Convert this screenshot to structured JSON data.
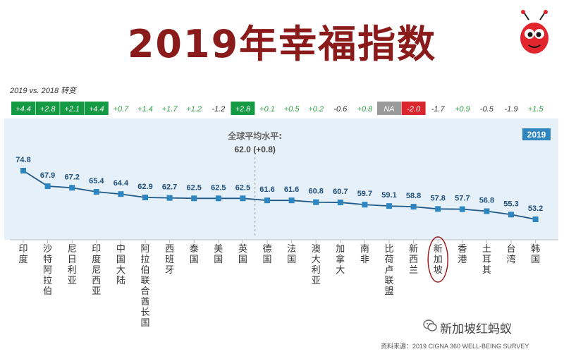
{
  "chart_data": {
    "type": "line",
    "title": "2019年幸福指数",
    "comparison_label": "2019 vs. 2018 转变",
    "year_badge": "2019",
    "average_label": "全球平均水平:",
    "average_value": "62.0 (+0.8)",
    "average_y": 62.0,
    "ylim": [
      50,
      78
    ],
    "grid": false,
    "categories": [
      "印度",
      "沙特阿拉伯",
      "尼日利亚",
      "印度尼西亚",
      "中国大陆",
      "阿拉伯联合酋长国",
      "西班牙",
      "泰国",
      "美国",
      "英国",
      "德国",
      "法国",
      "澳大利亚",
      "加拿大",
      "南非",
      "比荷卢联盟",
      "新西兰",
      "新加坡",
      "香港",
      "土耳其",
      "台湾",
      "韩国"
    ],
    "highlighted_category": "新加坡",
    "values": [
      74.8,
      67.9,
      67.2,
      65.4,
      64.4,
      62.9,
      62.7,
      62.5,
      62.5,
      62.5,
      61.6,
      61.6,
      60.8,
      60.7,
      59.7,
      59.1,
      58.8,
      57.8,
      57.7,
      56.8,
      55.3,
      53.2
    ],
    "changes": [
      "+4.4",
      "+2.8",
      "+2.1",
      "+4.4",
      "+0.7",
      "+1.4",
      "+1.7",
      "+1.2",
      "-1.2",
      "+2.8",
      "+0.1",
      "+0.5",
      "+0.2",
      "-0.6",
      "+0.8",
      "NA",
      "-2.0",
      "-1.7",
      "+0.9",
      "-0.5",
      "-1.9",
      "+1.5"
    ],
    "change_styles": [
      "green",
      "green",
      "green",
      "green",
      "plain",
      "plain",
      "plain",
      "plain",
      "plain",
      "green",
      "plain",
      "plain",
      "plain",
      "plain",
      "plain",
      "gray",
      "red",
      "plain",
      "plain",
      "plain",
      "plain",
      "plain"
    ]
  },
  "colors": {
    "title": "#8b1a1a",
    "line": "#1f5a8a",
    "marker": "#2e86c1",
    "panel": "#e5f0f8",
    "green_box": "#139a43",
    "red_box": "#d9262c",
    "gray_box": "#9a9a9a",
    "positive_text": "#2f9e44",
    "negative_text": "#333333",
    "badge": "#2e86c1",
    "circle": "#9b1c1c"
  },
  "source_text": "资料来源：2019 CIGNA 360 WELL-BEING SURVEY",
  "wechat_text": "新加坡红蚂蚁"
}
